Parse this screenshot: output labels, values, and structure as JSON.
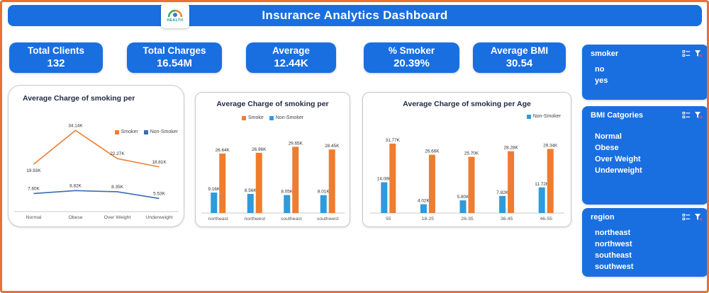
{
  "header": {
    "title": "Insurance Analytics Dashboard",
    "logo_text": "HEALTH"
  },
  "kpis": [
    {
      "label": "Total Clients",
      "value": "132"
    },
    {
      "label": "Total Charges",
      "value": "16.54M"
    },
    {
      "label": "Average",
      "value": "12.44K"
    },
    {
      "label": "% Smoker",
      "value": "20.39%"
    },
    {
      "label": "Average BMI",
      "value": "30.54"
    }
  ],
  "slicers": [
    {
      "title": "smoker",
      "items": [
        "no",
        "yes"
      ]
    },
    {
      "title": "BMI Catgories",
      "items": [
        "Normal",
        "Obese",
        "Over Weight",
        "Underweight"
      ]
    },
    {
      "title": "region",
      "items": [
        "northeast",
        "northwest",
        "southeast",
        "southwest"
      ]
    }
  ],
  "colors": {
    "primary_blue": "#1a6fe0",
    "border_orange": "#E97132",
    "series_orange": "#ED7D31",
    "series_blue": "#2E9BDA",
    "line_blue": "#3A6CB4"
  },
  "chart_data": [
    {
      "type": "line",
      "title": "Average Charge of smoking per",
      "categories": [
        "Normal",
        "Obese",
        "Over Weight",
        "Underweight"
      ],
      "ymax": 36,
      "legend_position": "right",
      "series": [
        {
          "name": "Non-Smoker",
          "color": "#3A6CB4",
          "values": [
            7.6,
            8.82,
            8.35,
            5.53
          ],
          "labels": [
            "7.60K",
            "8.82K",
            "8.35K",
            "5.53K"
          ]
        },
        {
          "name": "Smoker",
          "color": "#ED7D31",
          "values": [
            19.93,
            34.14,
            22.27,
            18.81
          ],
          "labels": [
            "19.93K",
            "34.14K",
            "22.27K",
            "18.81K"
          ],
          "label_dy": [
            11,
            -5,
            -5,
            -5
          ]
        }
      ],
      "legend": [
        "Smoker",
        "Non-Smoker"
      ]
    },
    {
      "type": "bar",
      "title": "Average Charge of smoking per",
      "categories": [
        "northeast",
        "northwest",
        "southeast",
        "southwest"
      ],
      "ymax": 32,
      "legend_position": "top-center",
      "series": [
        {
          "name": "Non-Smoker",
          "color": "#2E9BDA",
          "values": [
            9.16,
            8.56,
            8.05,
            8.01
          ],
          "labels": [
            "9.16K",
            "8.56K",
            "8.05K",
            "8.01K"
          ]
        },
        {
          "name": "Smoke",
          "color": "#ED7D31",
          "values": [
            26.64,
            26.96,
            29.65,
            28.45
          ],
          "labels": [
            "26.64K",
            "26.96K",
            "29.65K",
            "28.45K"
          ]
        }
      ],
      "legend": [
        "Smoke",
        "Non-Smoker"
      ]
    },
    {
      "type": "bar",
      "title": "Average Charge of smoking per Age",
      "categories": [
        "55",
        "18-25",
        "26-35",
        "36-45",
        "46-55"
      ],
      "ymax": 34,
      "legend_position": "top-right",
      "series": [
        {
          "name": "Non-Smoker",
          "color": "#2E9BDA",
          "values": [
            14.08,
            4.02,
            5.8,
            7.82,
            11.72
          ],
          "labels": [
            "14.08K",
            "4.02K",
            "5.80K",
            "7.82K",
            "11.72K"
          ]
        },
        {
          "name": "Smoker",
          "color": "#ED7D31",
          "values": [
            31.77,
            26.66,
            25.7,
            28.28,
            29.34
          ],
          "labels": [
            "31.77K",
            "26.66K",
            "25.70K",
            "28.28K",
            "29.34K"
          ]
        }
      ],
      "legend": [
        "Non-Smoker"
      ]
    }
  ]
}
